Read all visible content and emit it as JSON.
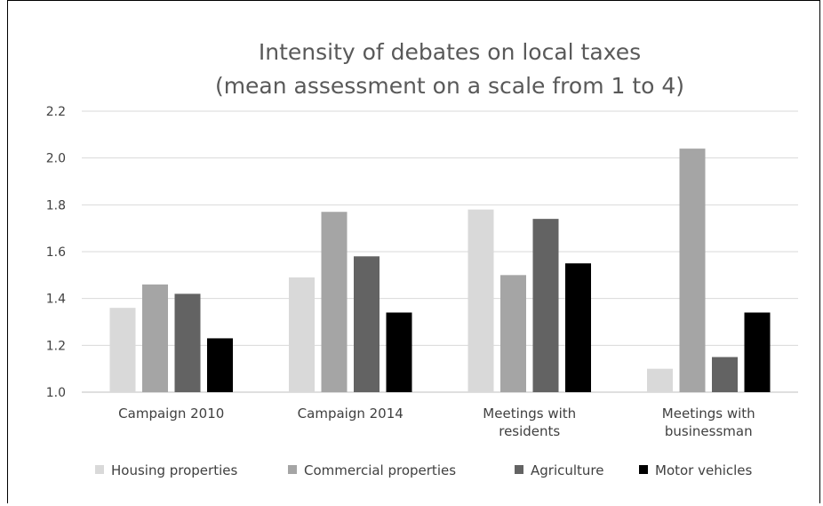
{
  "chart_data": {
    "type": "bar",
    "title": [
      "Intensity of debates on local taxes",
      "(mean assessment on a scale from 1 to 4)"
    ],
    "xlabel": "",
    "ylabel": "",
    "ylim": [
      1.0,
      2.2
    ],
    "yticks": [
      "1.0",
      "1.2",
      "1.4",
      "1.6",
      "1.8",
      "2.0",
      "2.2"
    ],
    "grid": true,
    "legend_position": "bottom",
    "categories": [
      [
        "Campaign 2010"
      ],
      [
        "Campaign 2014"
      ],
      [
        "Meetings with",
        "residents"
      ],
      [
        "Meetings with",
        "businessman"
      ]
    ],
    "series": [
      {
        "name": "Housing properties",
        "color": "#d9d9d9",
        "values": [
          1.36,
          1.49,
          1.78,
          1.1
        ]
      },
      {
        "name": "Commercial properties",
        "color": "#a5a5a5",
        "values": [
          1.46,
          1.77,
          1.5,
          2.04
        ]
      },
      {
        "name": "Agriculture",
        "color": "#636363",
        "values": [
          1.42,
          1.58,
          1.74,
          1.15
        ]
      },
      {
        "name": "Motor vehicles",
        "color": "#000000",
        "values": [
          1.23,
          1.34,
          1.55,
          1.34
        ]
      }
    ]
  }
}
